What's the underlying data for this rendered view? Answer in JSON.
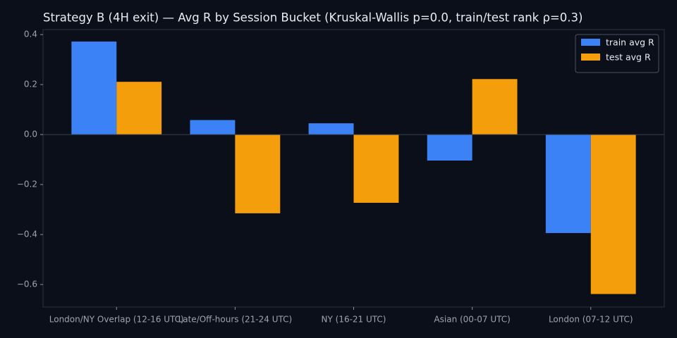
{
  "chart_data": {
    "type": "bar",
    "title": "Strategy B (4H exit) — Avg R by Session Bucket (Kruskal-Wallis p=0.0, train/test rank ρ=0.3)",
    "categories": [
      "London/NY Overlap (12-16 UTC)",
      "Late/Off-hours (21-24 UTC)",
      "NY (16-21 UTC)",
      "Asian (00-07 UTC)",
      "London (07-12 UTC)"
    ],
    "series": [
      {
        "name": "train avg R",
        "color": "#3b82f6",
        "values": [
          0.372,
          0.058,
          0.045,
          -0.104,
          -0.394
        ]
      },
      {
        "name": "test avg R",
        "color": "#f59e0b",
        "values": [
          0.211,
          -0.315,
          -0.273,
          0.222,
          -0.638
        ]
      }
    ],
    "ylim": [
      -0.69,
      0.42
    ],
    "yticks": [
      {
        "value": -0.6,
        "label": "−0.6"
      },
      {
        "value": -0.4,
        "label": "−0.4"
      },
      {
        "value": -0.2,
        "label": "−0.2"
      },
      {
        "value": 0,
        "label": "0.0"
      },
      0.2,
      0.4
    ],
    "legend": "upper right",
    "grid": false
  }
}
